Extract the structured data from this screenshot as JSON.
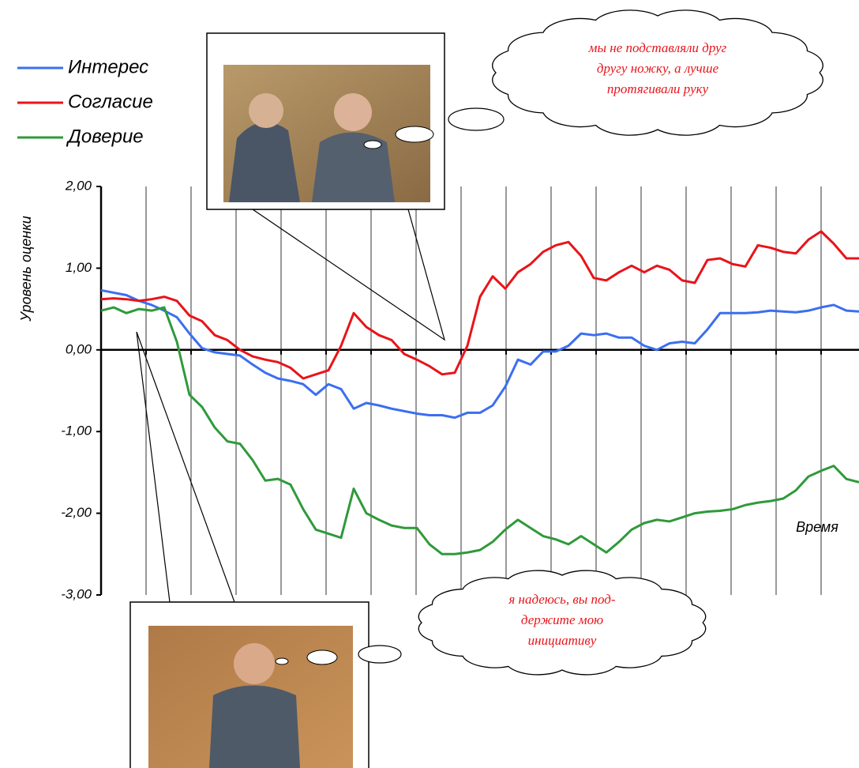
{
  "chart_data": {
    "type": "line",
    "y_axis_label": "Уровень оценки",
    "x_axis_label": "Время",
    "ylim": [
      -3,
      2
    ],
    "yticks": [
      {
        "value": -3,
        "label": "-3,00"
      },
      {
        "value": -2,
        "label": "-2,00"
      },
      {
        "value": -1,
        "label": "-1,00"
      },
      {
        "value": 0,
        "label": "0,00"
      },
      {
        "value": 1,
        "label": "1,00"
      },
      {
        "value": 2,
        "label": "2,00"
      }
    ],
    "grid": true,
    "legend": "top-left",
    "series": [
      {
        "name": "Интерес",
        "color": "#3b6ff0",
        "values": [
          0.73,
          0.7,
          0.67,
          0.6,
          0.55,
          0.48,
          0.4,
          0.2,
          0.02,
          -0.03,
          -0.05,
          -0.07,
          -0.18,
          -0.28,
          -0.35,
          -0.38,
          -0.42,
          -0.55,
          -0.42,
          -0.48,
          -0.72,
          -0.65,
          -0.68,
          -0.72,
          -0.75,
          -0.78,
          -0.8,
          -0.8,
          -0.83,
          -0.77,
          -0.77,
          -0.68,
          -0.45,
          -0.12,
          -0.18,
          -0.02,
          -0.02,
          0.05,
          0.2,
          0.18,
          0.2,
          0.15,
          0.15,
          0.05,
          0.0,
          0.08,
          0.1,
          0.08,
          0.25,
          0.45,
          0.45,
          0.45,
          0.46,
          0.48,
          0.47,
          0.46,
          0.48,
          0.52,
          0.55,
          0.48,
          0.47
        ]
      },
      {
        "name": "Согласие",
        "color": "#e8141a",
        "values": [
          0.62,
          0.63,
          0.62,
          0.6,
          0.62,
          0.65,
          0.6,
          0.42,
          0.35,
          0.18,
          0.12,
          0.0,
          -0.08,
          -0.12,
          -0.15,
          -0.22,
          -0.35,
          -0.3,
          -0.25,
          0.05,
          0.45,
          0.28,
          0.18,
          0.12,
          -0.05,
          -0.12,
          -0.2,
          -0.3,
          -0.28,
          0.05,
          0.65,
          0.9,
          0.75,
          0.95,
          1.05,
          1.2,
          1.28,
          1.32,
          1.15,
          0.88,
          0.85,
          0.95,
          1.03,
          0.95,
          1.03,
          0.98,
          0.85,
          0.82,
          1.1,
          1.12,
          1.05,
          1.02,
          1.28,
          1.25,
          1.2,
          1.18,
          1.35,
          1.45,
          1.3,
          1.12,
          1.12
        ]
      },
      {
        "name": "Доверие",
        "color": "#2f9a3a",
        "values": [
          0.48,
          0.52,
          0.45,
          0.5,
          0.48,
          0.52,
          0.1,
          -0.55,
          -0.7,
          -0.95,
          -1.12,
          -1.15,
          -1.35,
          -1.6,
          -1.58,
          -1.65,
          -1.95,
          -2.2,
          -2.25,
          -2.3,
          -1.7,
          -2.0,
          -2.08,
          -2.15,
          -2.18,
          -2.18,
          -2.38,
          -2.5,
          -2.5,
          -2.48,
          -2.45,
          -2.35,
          -2.2,
          -2.08,
          -2.18,
          -2.28,
          -2.32,
          -2.38,
          -2.28,
          -2.38,
          -2.48,
          -2.35,
          -2.2,
          -2.12,
          -2.08,
          -2.1,
          -2.05,
          -2.0,
          -1.98,
          -1.97,
          -1.95,
          -1.9,
          -1.87,
          -1.85,
          -1.82,
          -1.72,
          -1.55,
          -1.48,
          -1.42,
          -1.58,
          -1.62
        ]
      }
    ],
    "annotations": [
      {
        "lines": [
          "мы не подставляли друг",
          "другу ножку, а лучше",
          "протягивали руку"
        ]
      },
      {
        "lines": [
          "я надеюсь, вы под-",
          "держите мою",
          "инициативу"
        ]
      }
    ]
  }
}
